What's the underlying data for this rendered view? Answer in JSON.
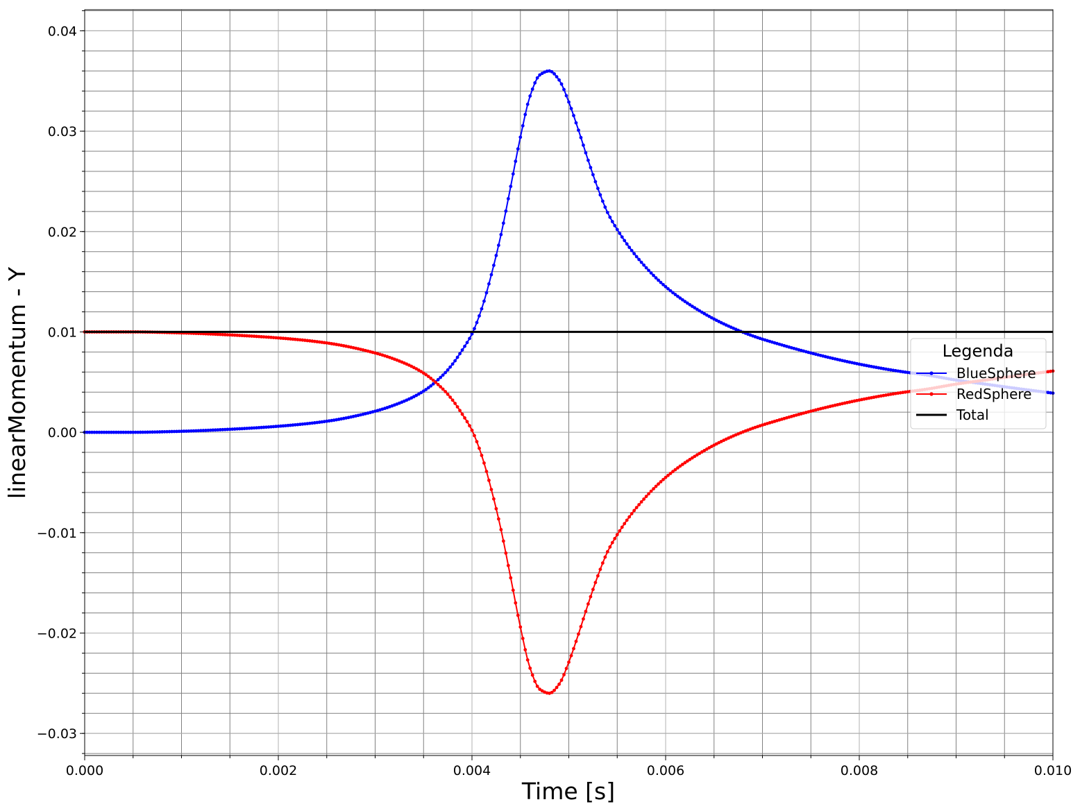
{
  "chart_data": {
    "type": "line",
    "xlabel": "Time [s]",
    "ylabel": "linearMomentum - Y",
    "xlim": [
      0.0,
      0.01
    ],
    "ylim": [
      -0.0322,
      0.0421
    ],
    "x_ticks": [
      "0.000",
      "0.002",
      "0.004",
      "0.006",
      "0.008",
      "0.010"
    ],
    "y_ticks": [
      "−0.03",
      "−0.02",
      "−0.01",
      "0.00",
      "0.01",
      "0.02",
      "0.03",
      "0.04"
    ],
    "x_tick_values": [
      0.0,
      0.002,
      0.004,
      0.006,
      0.008,
      0.01
    ],
    "y_tick_values": [
      -0.03,
      -0.02,
      -0.01,
      0.0,
      0.01,
      0.02,
      0.03,
      0.04
    ],
    "grid": "major and minor",
    "legend": {
      "title": "Legenda",
      "placement": "center-right"
    },
    "series": [
      {
        "name": "BlueSphere",
        "color": "#0000ff",
        "marker": "dot",
        "x": [
          0.0,
          0.0005,
          0.001,
          0.0015,
          0.002,
          0.0025,
          0.003,
          0.0033,
          0.0035,
          0.0037,
          0.0038,
          0.0039,
          0.004,
          0.0041,
          0.0042,
          0.0043,
          0.0044,
          0.0045,
          0.0046,
          0.0047,
          0.0048,
          0.0049,
          0.005,
          0.0051,
          0.0052,
          0.0053,
          0.0054,
          0.0055,
          0.0057,
          0.006,
          0.0063,
          0.0066,
          0.0069,
          0.0072,
          0.0075,
          0.0078,
          0.0081,
          0.0084,
          0.0087,
          0.009,
          0.0093,
          0.0096,
          0.01
        ],
        "y": [
          0.0,
          0.0,
          0.0001,
          0.0003,
          0.0006,
          0.0011,
          0.0021,
          0.0031,
          0.0041,
          0.0057,
          0.0068,
          0.0082,
          0.0098,
          0.0123,
          0.0157,
          0.0197,
          0.0245,
          0.0294,
          0.0335,
          0.0356,
          0.036,
          0.0351,
          0.0329,
          0.0301,
          0.0271,
          0.0243,
          0.0219,
          0.0202,
          0.0175,
          0.0145,
          0.0124,
          0.0108,
          0.0096,
          0.0087,
          0.0079,
          0.0072,
          0.0066,
          0.0061,
          0.0057,
          0.0052,
          0.0048,
          0.0044,
          0.0039
        ]
      },
      {
        "name": "RedSphere",
        "color": "#ff0000",
        "marker": "dot",
        "x": [
          0.0,
          0.0005,
          0.001,
          0.0015,
          0.002,
          0.0025,
          0.003,
          0.0033,
          0.0035,
          0.0037,
          0.0038,
          0.0039,
          0.004,
          0.0041,
          0.0042,
          0.0043,
          0.0044,
          0.0045,
          0.0046,
          0.0047,
          0.0048,
          0.0049,
          0.005,
          0.0051,
          0.0052,
          0.0053,
          0.0054,
          0.0055,
          0.0057,
          0.006,
          0.0063,
          0.0066,
          0.0069,
          0.0072,
          0.0075,
          0.0078,
          0.0081,
          0.0084,
          0.0087,
          0.009,
          0.0093,
          0.0096,
          0.01
        ],
        "y": [
          0.01,
          0.01,
          0.0099,
          0.0097,
          0.0094,
          0.0089,
          0.0079,
          0.0069,
          0.0059,
          0.0043,
          0.0032,
          0.0018,
          0.0002,
          -0.0023,
          -0.0057,
          -0.0097,
          -0.0145,
          -0.0194,
          -0.0235,
          -0.0256,
          -0.026,
          -0.0251,
          -0.0229,
          -0.0201,
          -0.0171,
          -0.0143,
          -0.0119,
          -0.0102,
          -0.0075,
          -0.0045,
          -0.0024,
          -0.0008,
          0.0004,
          0.0013,
          0.0021,
          0.0028,
          0.0034,
          0.0039,
          0.0043,
          0.0048,
          0.0052,
          0.0056,
          0.0061
        ]
      },
      {
        "name": "Total",
        "color": "#000000",
        "marker": "none",
        "x": [
          0.0,
          0.01
        ],
        "y": [
          0.01,
          0.01
        ]
      }
    ]
  }
}
